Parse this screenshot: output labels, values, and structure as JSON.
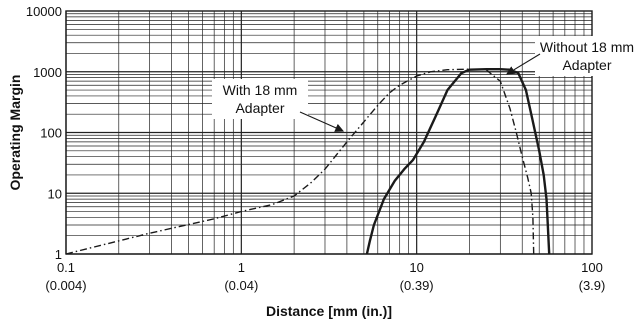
{
  "chart_data": {
    "type": "line",
    "xlabel": "Distance [mm (in.)]",
    "ylabel": "Operating Margin",
    "xscale": "log",
    "yscale": "log",
    "xlim": [
      0.1,
      100
    ],
    "ylim": [
      1,
      10000
    ],
    "grid": true,
    "legend": "none",
    "x_ticks": [
      {
        "value": 0.1,
        "label": "0.1",
        "sublabel": "(0.004)"
      },
      {
        "value": 1,
        "label": "1",
        "sublabel": "(0.04)"
      },
      {
        "value": 10,
        "label": "10",
        "sublabel": "(0.39)"
      },
      {
        "value": 100,
        "label": "100",
        "sublabel": "(3.9)"
      }
    ],
    "y_ticks": [
      {
        "value": 1,
        "label": "1"
      },
      {
        "value": 10,
        "label": "10"
      },
      {
        "value": 100,
        "label": "100"
      },
      {
        "value": 1000,
        "label": "1000"
      },
      {
        "value": 10000,
        "label": "10000"
      }
    ],
    "series": [
      {
        "name": "With 18 mm Adapter",
        "style": "dash-dot",
        "points": [
          [
            0.1,
            1
          ],
          [
            0.3,
            2.2
          ],
          [
            0.7,
            3.8
          ],
          [
            1.0,
            5
          ],
          [
            1.5,
            6.5
          ],
          [
            2.0,
            9
          ],
          [
            2.5,
            15
          ],
          [
            3.0,
            25
          ],
          [
            4.0,
            70
          ],
          [
            5.0,
            150
          ],
          [
            6.0,
            280
          ],
          [
            7.0,
            450
          ],
          [
            8.0,
            600
          ],
          [
            10.0,
            850
          ],
          [
            12.0,
            1000
          ],
          [
            15.0,
            1080
          ],
          [
            20.0,
            1100
          ],
          [
            25.0,
            1070
          ],
          [
            30.0,
            700
          ],
          [
            34.0,
            250
          ],
          [
            37.0,
            100
          ],
          [
            40.0,
            40
          ],
          [
            43.0,
            18
          ],
          [
            45.0,
            10
          ],
          [
            46.0,
            4
          ],
          [
            46.5,
            1
          ]
        ]
      },
      {
        "name": "Without 18 mm Adapter",
        "style": "solid",
        "points": [
          [
            5.2,
            1
          ],
          [
            5.4,
            1.6
          ],
          [
            5.7,
            3
          ],
          [
            6.5,
            8
          ],
          [
            7.5,
            16
          ],
          [
            8.5,
            25
          ],
          [
            9.5,
            35
          ],
          [
            11.0,
            70
          ],
          [
            13.0,
            200
          ],
          [
            15.0,
            500
          ],
          [
            18.0,
            950
          ],
          [
            20.0,
            1080
          ],
          [
            25.0,
            1100
          ],
          [
            30.0,
            1100
          ],
          [
            34.0,
            1080
          ],
          [
            38.0,
            950
          ],
          [
            42.0,
            500
          ],
          [
            46.0,
            150
          ],
          [
            50.0,
            50
          ],
          [
            53.0,
            20
          ],
          [
            55.0,
            8
          ],
          [
            56.0,
            3
          ],
          [
            57.0,
            1
          ]
        ]
      }
    ],
    "annotations": [
      {
        "id": "with-adapter",
        "lines": [
          "With 18 mm",
          "Adapter"
        ],
        "series": "With 18 mm Adapter"
      },
      {
        "id": "without-adapter",
        "lines": [
          "Without 18 mm",
          "Adapter"
        ],
        "series": "Without 18 mm Adapter"
      }
    ],
    "colors": {
      "line": "#1a1a1a",
      "grid": "#222222",
      "background": "#ffffff"
    }
  }
}
